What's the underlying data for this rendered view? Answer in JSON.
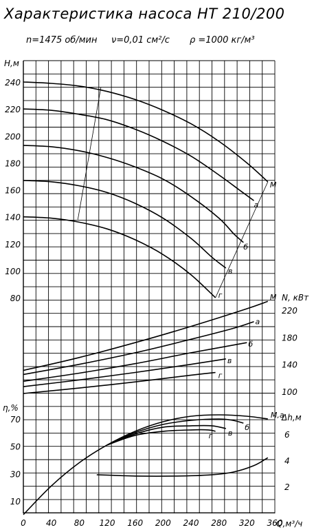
{
  "chart_data": {
    "type": "line",
    "title": "Характеристика насоса НТ 210/200",
    "subtitle": {
      "speed": "n=1475 об/мин",
      "viscosity": "ν=0,01 см²/с",
      "density": "ρ =1000 кг/м³"
    },
    "xlabel": "Q,м³/ч",
    "xlim": [
      0,
      360
    ],
    "x_ticks": [
      0,
      40,
      80,
      120,
      160,
      200,
      240,
      280,
      320,
      360
    ],
    "grid": true,
    "panels": {
      "head": {
        "ylabel": "H,м",
        "ylim": [
          80,
          240
        ],
        "y_ticks": [
          80,
          100,
          120,
          140,
          160,
          180,
          200,
          220,
          240
        ],
        "series": [
          {
            "name": "М",
            "x": [
              0,
              40,
              80,
              120,
              160,
              200,
              240,
              280,
              320,
              350
            ],
            "values": [
              240,
              239,
              237,
              233,
              227,
              219,
              209,
              196,
              180,
              166
            ]
          },
          {
            "name": "а",
            "x": [
              0,
              40,
              80,
              120,
              160,
              200,
              240,
              280,
              309,
              330
            ],
            "values": [
              220,
              219,
              216,
              212,
              205,
              196,
              185,
              171,
              160,
              152
            ]
          },
          {
            "name": "б",
            "x": [
              0,
              40,
              80,
              120,
              160,
              200,
              240,
              280,
              302,
              315
            ],
            "values": [
              193,
              192,
              189,
              184,
              177,
              168,
              155,
              139,
              127,
              121
            ]
          },
          {
            "name": "в",
            "x": [
              0,
              40,
              80,
              120,
              160,
              200,
              240,
              270,
              290
            ],
            "values": [
              167,
              166,
              163,
              158,
              150,
              139,
              124,
              110,
              102
            ]
          },
          {
            "name": "г",
            "x": [
              0,
              40,
              80,
              120,
              160,
              200,
              240,
              275
            ],
            "values": [
              140,
              139,
              136,
              131,
              123,
              112,
              97,
              80
            ]
          }
        ],
        "working_zone": {
          "left": {
            "x": [
              78,
              111
            ],
            "values": [
              138,
              236
            ]
          },
          "right": {
            "x": [
              275,
              350
            ],
            "values": [
              80,
              166
            ]
          }
        }
      },
      "power": {
        "ylabel": "N, кВт",
        "ylim": [
          80,
          240
        ],
        "y_ticks": [
          100,
          140,
          180,
          220
        ],
        "series": [
          {
            "name": "М",
            "x": [
              0,
              80,
              160,
              240,
              320,
              350
            ],
            "values": [
              131,
              150,
              172,
              196,
              222,
              233
            ]
          },
          {
            "name": "а",
            "x": [
              0,
              80,
              160,
              240,
              300,
              330
            ],
            "values": [
              125,
              140,
              157,
              177,
              193,
              203
            ]
          },
          {
            "name": "б",
            "x": [
              0,
              80,
              160,
              240,
              320
            ],
            "values": [
              115,
              127,
              141,
              157,
              172
            ]
          },
          {
            "name": "в",
            "x": [
              0,
              80,
              160,
              240,
              290
            ],
            "values": [
              107,
              117,
              128,
              140,
              148
            ]
          },
          {
            "name": "г",
            "x": [
              0,
              80,
              160,
              240,
              275
            ],
            "values": [
              97,
              105,
              114,
              124,
              128
            ]
          }
        ]
      },
      "efficiency": {
        "ylabel": "η,%",
        "ylim": [
          0,
          80
        ],
        "y_ticks": [
          10,
          30,
          50,
          70
        ],
        "series": [
          {
            "name": "М,а",
            "x": [
              0,
              40,
              80,
              120,
              160,
              200,
              240,
              280,
              320,
              350
            ],
            "values": [
              0,
              21,
              38,
              51,
              61,
              68,
              72,
              73,
              72,
              70
            ]
          },
          {
            "name": "б",
            "x": [
              120,
              160,
              200,
              240,
              280,
              300,
              315
            ],
            "values": [
              51,
              60,
              66,
              69,
              70,
              69,
              67
            ]
          },
          {
            "name": "в",
            "x": [
              120,
              160,
              200,
              240,
              270,
              290
            ],
            "values": [
              51,
              59,
              64,
              65,
              65,
              63
            ]
          },
          {
            "name": "г",
            "x": [
              120,
              160,
              200,
              240,
              265,
              275
            ],
            "values": [
              51,
              58,
              61,
              62,
              62,
              61
            ]
          }
        ]
      },
      "npsh": {
        "ylabel": "Δh,м",
        "ylim": [
          1,
          8
        ],
        "y_ticks": [
          2,
          4,
          6
        ],
        "series": [
          {
            "name": "Δh",
            "x": [
              105,
              160,
              220,
              270,
              300,
              330,
              350
            ],
            "values": [
              2.9,
              2.8,
              2.8,
              2.9,
              3.1,
              3.6,
              4.2
            ]
          }
        ]
      }
    }
  },
  "colors": {
    "line": "#000000",
    "grid": "#000000",
    "background": "#ffffff"
  }
}
